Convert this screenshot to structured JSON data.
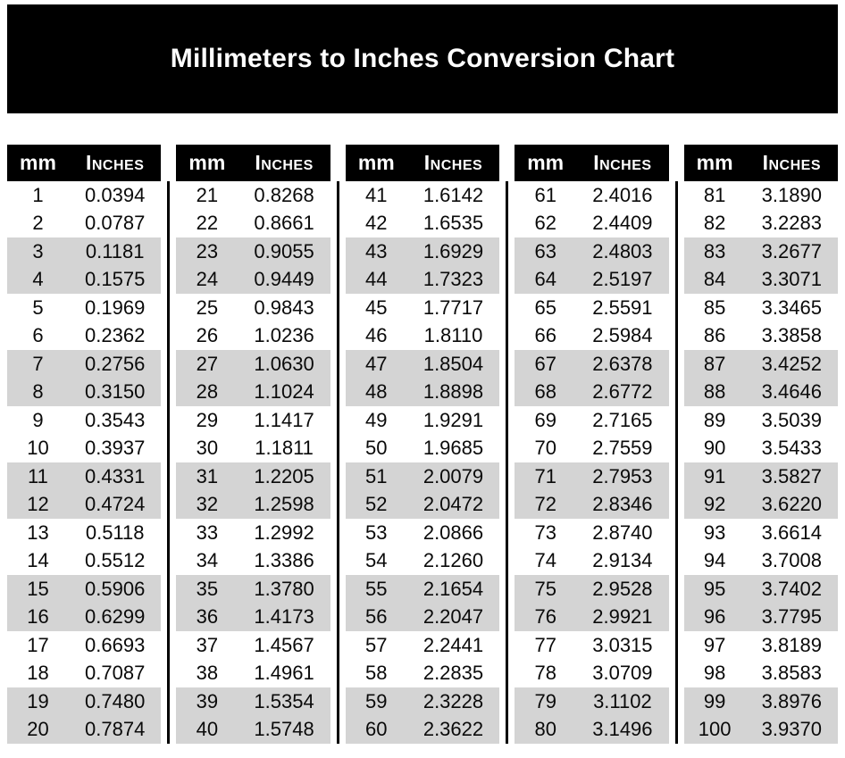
{
  "page": {
    "title": "Millimeters to Inches Conversion Chart"
  },
  "colors": {
    "banner_bg": "#000000",
    "banner_text": "#ffffff",
    "header_bg": "#000000",
    "header_text": "#ffffff",
    "stripe": "#d4d4d4",
    "divider": "#000000",
    "row_text": "#0a0a0a"
  },
  "table": {
    "column_headers": {
      "mm": "mm",
      "inches": "Inches"
    },
    "groups": [
      {
        "rows": [
          [
            "1",
            "0.0394"
          ],
          [
            "2",
            "0.0787"
          ],
          [
            "3",
            "0.1181"
          ],
          [
            "4",
            "0.1575"
          ],
          [
            "5",
            "0.1969"
          ],
          [
            "6",
            "0.2362"
          ],
          [
            "7",
            "0.2756"
          ],
          [
            "8",
            "0.3150"
          ],
          [
            "9",
            "0.3543"
          ],
          [
            "10",
            "0.3937"
          ],
          [
            "11",
            "0.4331"
          ],
          [
            "12",
            "0.4724"
          ],
          [
            "13",
            "0.5118"
          ],
          [
            "14",
            "0.5512"
          ],
          [
            "15",
            "0.5906"
          ],
          [
            "16",
            "0.6299"
          ],
          [
            "17",
            "0.6693"
          ],
          [
            "18",
            "0.7087"
          ],
          [
            "19",
            "0.7480"
          ],
          [
            "20",
            "0.7874"
          ]
        ]
      },
      {
        "rows": [
          [
            "21",
            "0.8268"
          ],
          [
            "22",
            "0.8661"
          ],
          [
            "23",
            "0.9055"
          ],
          [
            "24",
            "0.9449"
          ],
          [
            "25",
            "0.9843"
          ],
          [
            "26",
            "1.0236"
          ],
          [
            "27",
            "1.0630"
          ],
          [
            "28",
            "1.1024"
          ],
          [
            "29",
            "1.1417"
          ],
          [
            "30",
            "1.1811"
          ],
          [
            "31",
            "1.2205"
          ],
          [
            "32",
            "1.2598"
          ],
          [
            "33",
            "1.2992"
          ],
          [
            "34",
            "1.3386"
          ],
          [
            "35",
            "1.3780"
          ],
          [
            "36",
            "1.4173"
          ],
          [
            "37",
            "1.4567"
          ],
          [
            "38",
            "1.4961"
          ],
          [
            "39",
            "1.5354"
          ],
          [
            "40",
            "1.5748"
          ]
        ]
      },
      {
        "rows": [
          [
            "41",
            "1.6142"
          ],
          [
            "42",
            "1.6535"
          ],
          [
            "43",
            "1.6929"
          ],
          [
            "44",
            "1.7323"
          ],
          [
            "45",
            "1.7717"
          ],
          [
            "46",
            "1.8110"
          ],
          [
            "47",
            "1.8504"
          ],
          [
            "48",
            "1.8898"
          ],
          [
            "49",
            "1.9291"
          ],
          [
            "50",
            "1.9685"
          ],
          [
            "51",
            "2.0079"
          ],
          [
            "52",
            "2.0472"
          ],
          [
            "53",
            "2.0866"
          ],
          [
            "54",
            "2.1260"
          ],
          [
            "55",
            "2.1654"
          ],
          [
            "56",
            "2.2047"
          ],
          [
            "57",
            "2.2441"
          ],
          [
            "58",
            "2.2835"
          ],
          [
            "59",
            "2.3228"
          ],
          [
            "60",
            "2.3622"
          ]
        ]
      },
      {
        "rows": [
          [
            "61",
            "2.4016"
          ],
          [
            "62",
            "2.4409"
          ],
          [
            "63",
            "2.4803"
          ],
          [
            "64",
            "2.5197"
          ],
          [
            "65",
            "2.5591"
          ],
          [
            "66",
            "2.5984"
          ],
          [
            "67",
            "2.6378"
          ],
          [
            "68",
            "2.6772"
          ],
          [
            "69",
            "2.7165"
          ],
          [
            "70",
            "2.7559"
          ],
          [
            "71",
            "2.7953"
          ],
          [
            "72",
            "2.8346"
          ],
          [
            "73",
            "2.8740"
          ],
          [
            "74",
            "2.9134"
          ],
          [
            "75",
            "2.9528"
          ],
          [
            "76",
            "2.9921"
          ],
          [
            "77",
            "3.0315"
          ],
          [
            "78",
            "3.0709"
          ],
          [
            "79",
            "3.1102"
          ],
          [
            "80",
            "3.1496"
          ]
        ]
      },
      {
        "rows": [
          [
            "81",
            "3.1890"
          ],
          [
            "82",
            "3.2283"
          ],
          [
            "83",
            "3.2677"
          ],
          [
            "84",
            "3.3071"
          ],
          [
            "85",
            "3.3465"
          ],
          [
            "86",
            "3.3858"
          ],
          [
            "87",
            "3.4252"
          ],
          [
            "88",
            "3.4646"
          ],
          [
            "89",
            "3.5039"
          ],
          [
            "90",
            "3.5433"
          ],
          [
            "91",
            "3.5827"
          ],
          [
            "92",
            "3.6220"
          ],
          [
            "93",
            "3.6614"
          ],
          [
            "94",
            "3.7008"
          ],
          [
            "95",
            "3.7402"
          ],
          [
            "96",
            "3.7795"
          ],
          [
            "97",
            "3.8189"
          ],
          [
            "98",
            "3.8583"
          ],
          [
            "99",
            "3.8976"
          ],
          [
            "100",
            "3.9370"
          ]
        ]
      }
    ]
  }
}
